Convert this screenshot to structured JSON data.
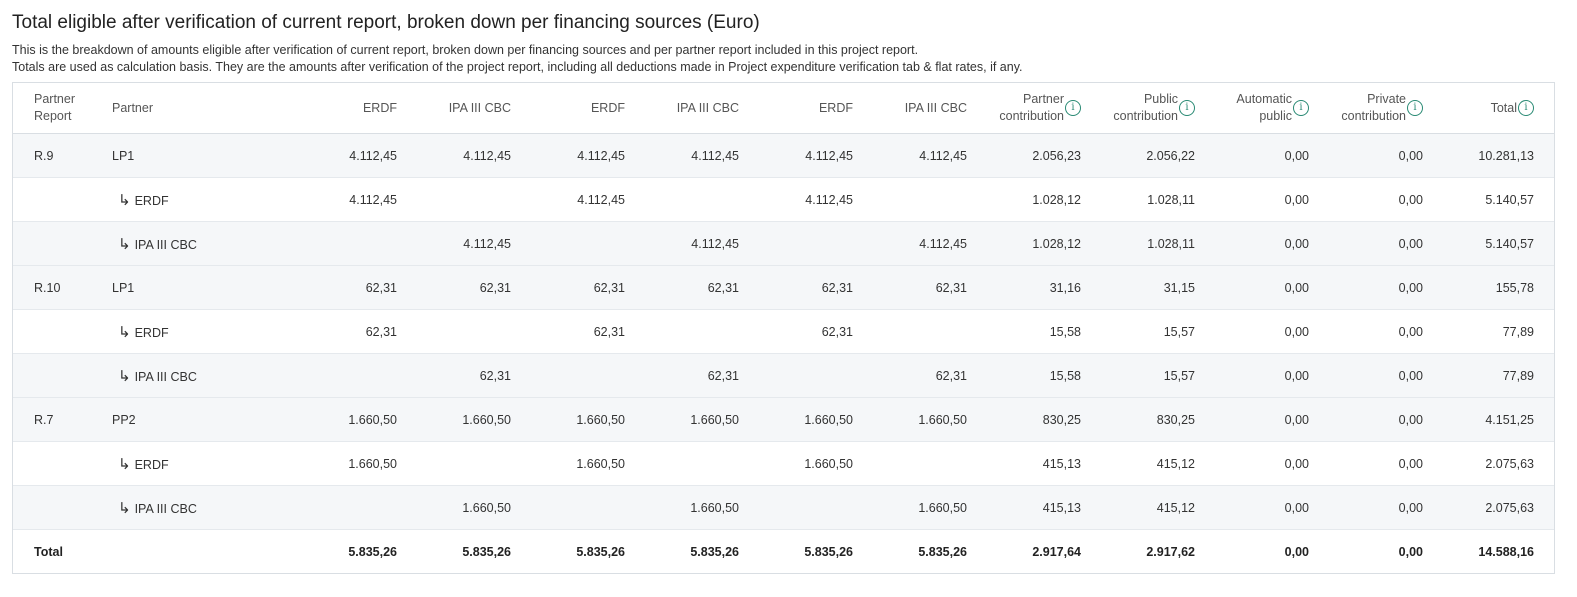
{
  "title": "Total eligible after verification of current report, broken down per financing sources (Euro)",
  "description_line1": "This is the breakdown of amounts eligible after verification of current report, broken down per financing sources and per partner report included in this project report.",
  "description_line2": "Totals are used as calculation basis. They are the amounts after verification of the project report, including all deductions made in Project expenditure verification tab & flat rates, if any.",
  "icons": {
    "info": "info-icon",
    "sub_arrow": "sub-arrow-icon"
  },
  "colors": {
    "accent": "#2a8a74",
    "row_shade": "#f5f7f9",
    "border": "#d9dee3"
  },
  "table": {
    "headers": {
      "partner_report_1": "Partner",
      "partner_report_2": "Report",
      "partner": "Partner",
      "erdf_1": "ERDF",
      "ipa_1": "IPA III CBC",
      "erdf_2": "ERDF",
      "ipa_2": "IPA III CBC",
      "erdf_3": "ERDF",
      "ipa_3": "IPA III CBC",
      "partner_contribution_1": "Partner",
      "partner_contribution_2": "contribution",
      "public_contribution_1": "Public",
      "public_contribution_2": "contribution",
      "automatic_public_1": "Automatic",
      "automatic_public_2": "public",
      "private_contribution_1": "Private",
      "private_contribution_2": "contribution",
      "total": "Total"
    },
    "rows": [
      {
        "report": "R.9",
        "partner": "LP1",
        "c1": "4.112,45",
        "c2": "4.112,45",
        "c3": "4.112,45",
        "c4": "4.112,45",
        "c5": "4.112,45",
        "c6": "4.112,45",
        "pc": "2.056,23",
        "pub": "2.056,22",
        "auto": "0,00",
        "priv": "0,00",
        "total": "10.281,13"
      },
      {
        "report": "",
        "partner": "ERDF",
        "c1": "4.112,45",
        "c2": "",
        "c3": "4.112,45",
        "c4": "",
        "c5": "4.112,45",
        "c6": "",
        "pc": "1.028,12",
        "pub": "1.028,11",
        "auto": "0,00",
        "priv": "0,00",
        "total": "5.140,57"
      },
      {
        "report": "",
        "partner": "IPA III CBC",
        "c1": "",
        "c2": "4.112,45",
        "c3": "",
        "c4": "4.112,45",
        "c5": "",
        "c6": "4.112,45",
        "pc": "1.028,12",
        "pub": "1.028,11",
        "auto": "0,00",
        "priv": "0,00",
        "total": "5.140,57"
      },
      {
        "report": "R.10",
        "partner": "LP1",
        "c1": "62,31",
        "c2": "62,31",
        "c3": "62,31",
        "c4": "62,31",
        "c5": "62,31",
        "c6": "62,31",
        "pc": "31,16",
        "pub": "31,15",
        "auto": "0,00",
        "priv": "0,00",
        "total": "155,78"
      },
      {
        "report": "",
        "partner": "ERDF",
        "c1": "62,31",
        "c2": "",
        "c3": "62,31",
        "c4": "",
        "c5": "62,31",
        "c6": "",
        "pc": "15,58",
        "pub": "15,57",
        "auto": "0,00",
        "priv": "0,00",
        "total": "77,89"
      },
      {
        "report": "",
        "partner": "IPA III CBC",
        "c1": "",
        "c2": "62,31",
        "c3": "",
        "c4": "62,31",
        "c5": "",
        "c6": "62,31",
        "pc": "15,58",
        "pub": "15,57",
        "auto": "0,00",
        "priv": "0,00",
        "total": "77,89"
      },
      {
        "report": "R.7",
        "partner": "PP2",
        "c1": "1.660,50",
        "c2": "1.660,50",
        "c3": "1.660,50",
        "c4": "1.660,50",
        "c5": "1.660,50",
        "c6": "1.660,50",
        "pc": "830,25",
        "pub": "830,25",
        "auto": "0,00",
        "priv": "0,00",
        "total": "4.151,25"
      },
      {
        "report": "",
        "partner": "ERDF",
        "c1": "1.660,50",
        "c2": "",
        "c3": "1.660,50",
        "c4": "",
        "c5": "1.660,50",
        "c6": "",
        "pc": "415,13",
        "pub": "415,12",
        "auto": "0,00",
        "priv": "0,00",
        "total": "2.075,63"
      },
      {
        "report": "",
        "partner": "IPA III CBC",
        "c1": "",
        "c2": "1.660,50",
        "c3": "",
        "c4": "1.660,50",
        "c5": "",
        "c6": "1.660,50",
        "pc": "415,13",
        "pub": "415,12",
        "auto": "0,00",
        "priv": "0,00",
        "total": "2.075,63"
      }
    ],
    "total": {
      "label": "Total",
      "c1": "5.835,26",
      "c2": "5.835,26",
      "c3": "5.835,26",
      "c4": "5.835,26",
      "c5": "5.835,26",
      "c6": "5.835,26",
      "pc": "2.917,64",
      "pub": "2.917,62",
      "auto": "0,00",
      "priv": "0,00",
      "total": "14.588,16"
    }
  }
}
